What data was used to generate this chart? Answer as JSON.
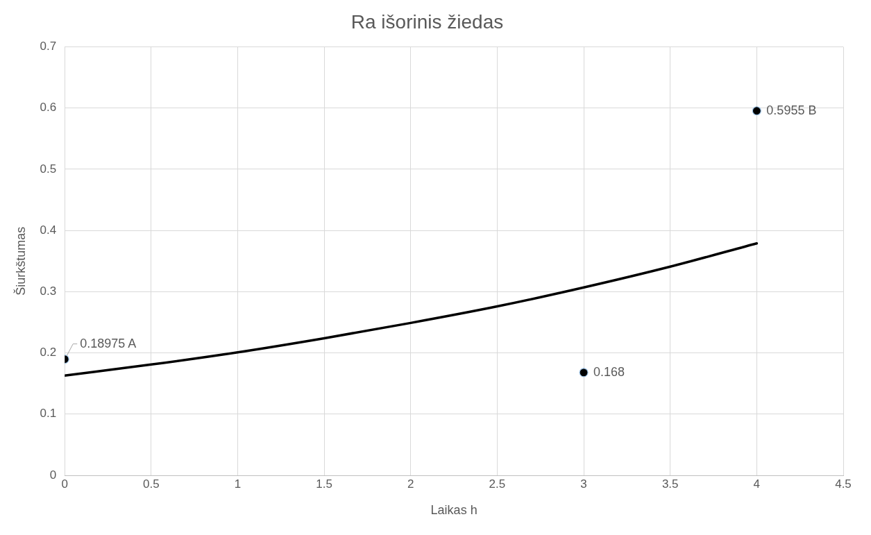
{
  "chart_data": {
    "type": "scatter",
    "title": "Ra išorinis žiedas",
    "xlabel": "Laikas h",
    "ylabel": "Šiurkštumas",
    "xlim": [
      0,
      4.5
    ],
    "xticks": [
      0,
      0.5,
      1,
      1.5,
      2,
      2.5,
      3,
      3.5,
      4,
      4.5
    ],
    "ylim": [
      0,
      0.7
    ],
    "yticks": [
      0,
      0.1,
      0.2,
      0.3,
      0.4,
      0.5,
      0.6,
      0.7
    ],
    "grid": true,
    "series": [
      {
        "type": "scatter",
        "marker": "circle",
        "color": "#000000",
        "x": [
          0,
          3,
          4
        ],
        "values": [
          0.18975,
          0.168,
          0.5955
        ],
        "value_labels": [
          "0.18975 A",
          "0.168",
          "0.5955 B"
        ]
      },
      {
        "type": "line",
        "color": "#000000",
        "line_style": "solid",
        "x": [
          0,
          0.5,
          1,
          1.5,
          2,
          2.5,
          3,
          3.5,
          4
        ],
        "values": [
          0.163,
          0.181,
          0.201,
          0.224,
          0.249,
          0.276,
          0.307,
          0.341,
          0.379
        ]
      }
    ]
  }
}
